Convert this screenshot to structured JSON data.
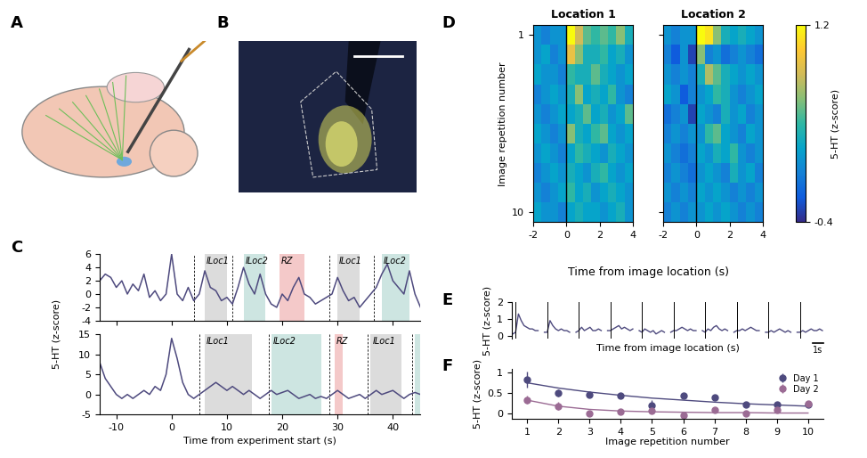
{
  "chart_data": [
    {
      "panel": "A",
      "type": "illustration"
    },
    {
      "panel": "B",
      "type": "image"
    },
    {
      "panel": "C",
      "type": "line",
      "xlabel": "Time from experiment start (s)",
      "ylabel": "5-HT (z-score)",
      "color": "#4e4a7e",
      "xlim": [
        -13,
        45
      ],
      "xticks": [
        -10,
        0,
        10,
        20,
        30,
        40
      ],
      "x": [
        -13,
        -12,
        -11,
        -10,
        -9,
        -8,
        -7,
        -6,
        -5,
        -4,
        -3,
        -2,
        -1,
        0,
        1,
        2,
        3,
        4,
        5,
        6,
        7,
        8,
        9,
        10,
        11,
        12,
        13,
        14,
        15,
        16,
        17,
        18,
        19,
        20,
        21,
        22,
        23,
        24,
        25,
        26,
        27,
        28,
        29,
        30,
        31,
        32,
        33,
        34,
        35,
        36,
        37,
        38,
        39,
        40,
        41,
        42,
        43,
        44,
        45
      ],
      "subplots": [
        {
          "ylim": [
            -4,
            6
          ],
          "yticks": [
            -4,
            -2,
            0,
            2,
            4,
            6
          ],
          "values": [
            2,
            3,
            2.5,
            1,
            2,
            0,
            1.5,
            0.5,
            3,
            -0.5,
            0.5,
            -1,
            0,
            6,
            0,
            -1,
            1,
            -1,
            0,
            3.5,
            1,
            0.5,
            -1,
            -0.5,
            -1.5,
            1,
            4,
            1.5,
            0,
            3,
            0,
            -1.5,
            -2,
            0,
            -1,
            1,
            2.5,
            0,
            -0.5,
            -1.5,
            -1,
            -0.5,
            0,
            2.5,
            0.5,
            -1,
            -0.5,
            -2,
            -1,
            0,
            1,
            3,
            4.5,
            2,
            1,
            0,
            3.5,
            0,
            -2
          ],
          "events": [
            4,
            11,
            28.5,
            36.5
          ],
          "regions": [
            {
              "label": "ILoc1",
              "start": 6,
              "end": 10,
              "color": "#dcdcdc"
            },
            {
              "label": "ILoc2",
              "start": 13,
              "end": 17,
              "color": "#cde5e1"
            },
            {
              "label": "RZ",
              "start": 19.5,
              "end": 24,
              "color": "#f4c9c9"
            },
            {
              "label": "ILoc1",
              "start": 30,
              "end": 34,
              "color": "#dcdcdc"
            },
            {
              "label": "ILoc2",
              "start": 38,
              "end": 43,
              "color": "#cde5e1"
            }
          ]
        },
        {
          "ylim": [
            -5,
            15
          ],
          "yticks": [
            -5,
            0,
            5,
            10,
            15
          ],
          "values": [
            8,
            4,
            2,
            0,
            -1,
            0,
            -1,
            0,
            1,
            0,
            2,
            1,
            5,
            14,
            9,
            3,
            0,
            -1,
            0,
            1,
            2,
            3,
            2,
            1,
            2,
            1,
            0,
            1,
            0,
            -1,
            0,
            1,
            0,
            0.5,
            1,
            0,
            -1,
            -0.5,
            0,
            -1,
            -0.5,
            -1,
            0,
            1,
            0,
            -1,
            -0.5,
            0,
            -1,
            0,
            1,
            0,
            0.5,
            1,
            0,
            -1,
            0,
            0.5,
            0
          ],
          "events": [
            5,
            17.5,
            28.5,
            35.5,
            43.5
          ],
          "regions": [
            {
              "label": "ILoc1",
              "start": 6,
              "end": 14.5,
              "color": "#dcdcdc"
            },
            {
              "label": "ILoc2",
              "start": 18,
              "end": 27,
              "color": "#cde5e1"
            },
            {
              "label": "RZ",
              "start": 29.5,
              "end": 31,
              "color": "#f4c9c9"
            },
            {
              "label": "ILoc1",
              "start": 36,
              "end": 41.5,
              "color": "#dcdcdc"
            },
            {
              "start": 44,
              "end": 45,
              "color": "#cde5e1"
            }
          ]
        }
      ]
    },
    {
      "panel": "D",
      "type": "heatmap",
      "xlabel": "Time from image location (s)",
      "ylabel": "Image repetition number",
      "xlim": [
        -2,
        4
      ],
      "xticks": [
        -2,
        0,
        2,
        4
      ],
      "ylim": [
        10.5,
        0.5
      ],
      "yticks": [
        1,
        10
      ],
      "onset": 0,
      "x_edges": [
        -2,
        -1.5,
        -1,
        -0.5,
        0,
        0.5,
        1,
        1.5,
        2,
        2.5,
        3,
        3.5,
        4
      ],
      "y": [
        1,
        2,
        3,
        4,
        5,
        6,
        7,
        8,
        9,
        10
      ],
      "maps": [
        {
          "title": "Location 1",
          "cells": [
            [
              0.1,
              0.0,
              0.1,
              0.1,
              1.2,
              0.8,
              0.5,
              0.4,
              0.5,
              0.4,
              0.6,
              0.3
            ],
            [
              0.1,
              0.2,
              0.0,
              0.1,
              0.9,
              0.6,
              0.3,
              0.3,
              0.4,
              0.2,
              0.3,
              0.1
            ],
            [
              0.2,
              0.1,
              0.1,
              0.0,
              0.4,
              0.3,
              0.3,
              0.5,
              0.3,
              0.2,
              0.1,
              0.2
            ],
            [
              0.0,
              0.1,
              0.2,
              0.1,
              0.3,
              0.6,
              0.2,
              0.3,
              0.2,
              0.4,
              0.1,
              0.0
            ],
            [
              0.1,
              0.0,
              0.1,
              0.2,
              0.2,
              0.3,
              0.5,
              0.2,
              0.3,
              0.1,
              0.2,
              0.5
            ],
            [
              0.2,
              0.1,
              0.0,
              0.1,
              0.6,
              0.3,
              0.2,
              0.4,
              0.5,
              0.2,
              0.1,
              0.2
            ],
            [
              0.1,
              0.2,
              0.1,
              0.0,
              0.2,
              0.4,
              0.3,
              0.2,
              0.1,
              0.3,
              0.2,
              0.1
            ],
            [
              0.0,
              0.1,
              0.2,
              0.1,
              0.3,
              0.2,
              0.1,
              0.3,
              0.4,
              0.2,
              0.1,
              0.2
            ],
            [
              0.1,
              0.0,
              0.1,
              0.2,
              0.4,
              0.2,
              0.3,
              0.1,
              0.2,
              0.3,
              0.2,
              0.1
            ],
            [
              0.2,
              0.1,
              0.1,
              0.0,
              0.2,
              0.3,
              0.2,
              0.2,
              0.1,
              0.2,
              0.3,
              0.1
            ]
          ]
        },
        {
          "title": "Location 2",
          "cells": [
            [
              0.1,
              0.0,
              0.1,
              0.1,
              1.2,
              1.1,
              0.6,
              0.3,
              0.2,
              0.3,
              0.2,
              0.1
            ],
            [
              0.0,
              -0.2,
              0.1,
              -0.3,
              0.6,
              0.0,
              0.1,
              -0.1,
              0.0,
              0.1,
              0.0,
              -0.1
            ],
            [
              0.1,
              0.0,
              0.1,
              0.0,
              0.3,
              0.7,
              0.5,
              0.3,
              0.2,
              0.1,
              0.2,
              0.1
            ],
            [
              0.2,
              0.1,
              -0.2,
              0.0,
              0.1,
              0.2,
              0.4,
              0.3,
              0.1,
              0.0,
              0.1,
              0.2
            ],
            [
              -0.1,
              0.0,
              0.1,
              -0.3,
              0.2,
              0.1,
              0.0,
              0.3,
              0.1,
              0.2,
              0.0,
              0.1
            ],
            [
              0.0,
              0.1,
              0.0,
              0.1,
              0.1,
              0.4,
              0.5,
              0.2,
              0.1,
              0.0,
              0.2,
              0.1
            ],
            [
              0.1,
              0.0,
              -0.1,
              0.0,
              0.2,
              0.1,
              0.3,
              0.2,
              0.4,
              0.1,
              0.0,
              0.1
            ],
            [
              0.0,
              0.1,
              0.0,
              -0.1,
              0.1,
              0.2,
              0.1,
              0.0,
              0.3,
              0.1,
              0.2,
              0.0
            ],
            [
              0.1,
              0.0,
              0.1,
              0.0,
              0.2,
              0.1,
              0.2,
              0.1,
              0.0,
              0.1,
              0.0,
              0.1
            ],
            [
              0.0,
              0.1,
              0.0,
              0.1,
              0.1,
              0.2,
              0.1,
              0.2,
              0.1,
              0.0,
              0.1,
              0.0
            ]
          ]
        }
      ],
      "colorbar": {
        "label": "5-HT (z-score)",
        "range": [
          -0.4,
          1.2
        ],
        "ticks": [
          -0.4,
          1.2
        ]
      }
    },
    {
      "panel": "E",
      "type": "line",
      "xlabel": "Time from image location (s)",
      "ylabel": "5-HT (z-score)",
      "color": "#4e4a7e",
      "ylim": [
        -0.2,
        2
      ],
      "yticks": [
        0,
        1,
        2
      ],
      "tick_labels": "y",
      "onset": 0,
      "scale_bar": {
        "value": 1,
        "label": "1s"
      },
      "x": [
        -0.25,
        0,
        0.25,
        0.5,
        0.75,
        1,
        1.25,
        1.5,
        1.75,
        2
      ],
      "series": [
        [
          0.1,
          0.2,
          1.3,
          0.9,
          0.6,
          0.5,
          0.4,
          0.4,
          0.3,
          0.3
        ],
        [
          0.2,
          0.2,
          0.9,
          0.6,
          0.4,
          0.3,
          0.4,
          0.3,
          0.3,
          0.2
        ],
        [
          0.2,
          0.3,
          0.5,
          0.3,
          0.4,
          0.5,
          0.3,
          0.3,
          0.4,
          0.3
        ],
        [
          0.3,
          0.3,
          0.4,
          0.5,
          0.6,
          0.4,
          0.5,
          0.4,
          0.3,
          0.4
        ],
        [
          0.3,
          0.2,
          0.4,
          0.3,
          0.2,
          0.3,
          0.1,
          0.2,
          0.3,
          0.2
        ],
        [
          0.2,
          0.3,
          0.3,
          0.4,
          0.5,
          0.4,
          0.3,
          0.4,
          0.3,
          0.3
        ],
        [
          0.3,
          0.2,
          0.4,
          0.3,
          0.5,
          0.6,
          0.4,
          0.3,
          0.4,
          0.3
        ],
        [
          0.2,
          0.3,
          0.3,
          0.4,
          0.3,
          0.4,
          0.5,
          0.4,
          0.3,
          0.3
        ],
        [
          0.2,
          0.2,
          0.3,
          0.2,
          0.3,
          0.4,
          0.3,
          0.2,
          0.3,
          0.2
        ],
        [
          0.2,
          0.2,
          0.3,
          0.2,
          0.3,
          0.4,
          0.3,
          0.3,
          0.4,
          0.3
        ]
      ]
    },
    {
      "panel": "F",
      "type": "scatter",
      "xlabel": "Image repetition number",
      "ylabel": "5-HT (z-score)",
      "xlim": [
        0.5,
        10.5
      ],
      "xticks": [
        1,
        2,
        3,
        4,
        5,
        6,
        7,
        8,
        9,
        10
      ],
      "ylim": [
        -0.15,
        1.1
      ],
      "yticks": [
        0,
        0.5,
        1
      ],
      "legend": "upper right",
      "marker": "o",
      "x": [
        1,
        2,
        3,
        4,
        5,
        6,
        7,
        8,
        9,
        10
      ],
      "series": [
        {
          "name": "Day 1",
          "color": "#4e4a7e",
          "values": [
            0.83,
            0.5,
            0.45,
            0.43,
            0.18,
            0.43,
            0.38,
            0.22,
            0.22,
            0.2
          ],
          "errors": [
            0.2,
            0.08,
            0.04,
            0.05,
            0.15,
            0.04,
            0.05,
            0.04,
            0.04,
            0.05
          ],
          "fit": [
            0.75,
            0.62,
            0.52,
            0.44,
            0.37,
            0.32,
            0.27,
            0.23,
            0.2,
            0.17
          ]
        },
        {
          "name": "Day 2",
          "color": "#9b6b94",
          "values": [
            0.33,
            0.17,
            0.0,
            0.03,
            0.05,
            -0.05,
            0.07,
            0.0,
            0.07,
            0.23
          ],
          "errors": [
            0.1,
            0.1,
            0.03,
            0.05,
            0.05,
            0.03,
            0.04,
            0.05,
            0.04,
            0.05
          ],
          "fit": [
            0.32,
            0.17,
            0.09,
            0.05,
            0.03,
            0.02,
            0.01,
            0.01,
            0.0,
            0.0
          ]
        }
      ]
    }
  ]
}
